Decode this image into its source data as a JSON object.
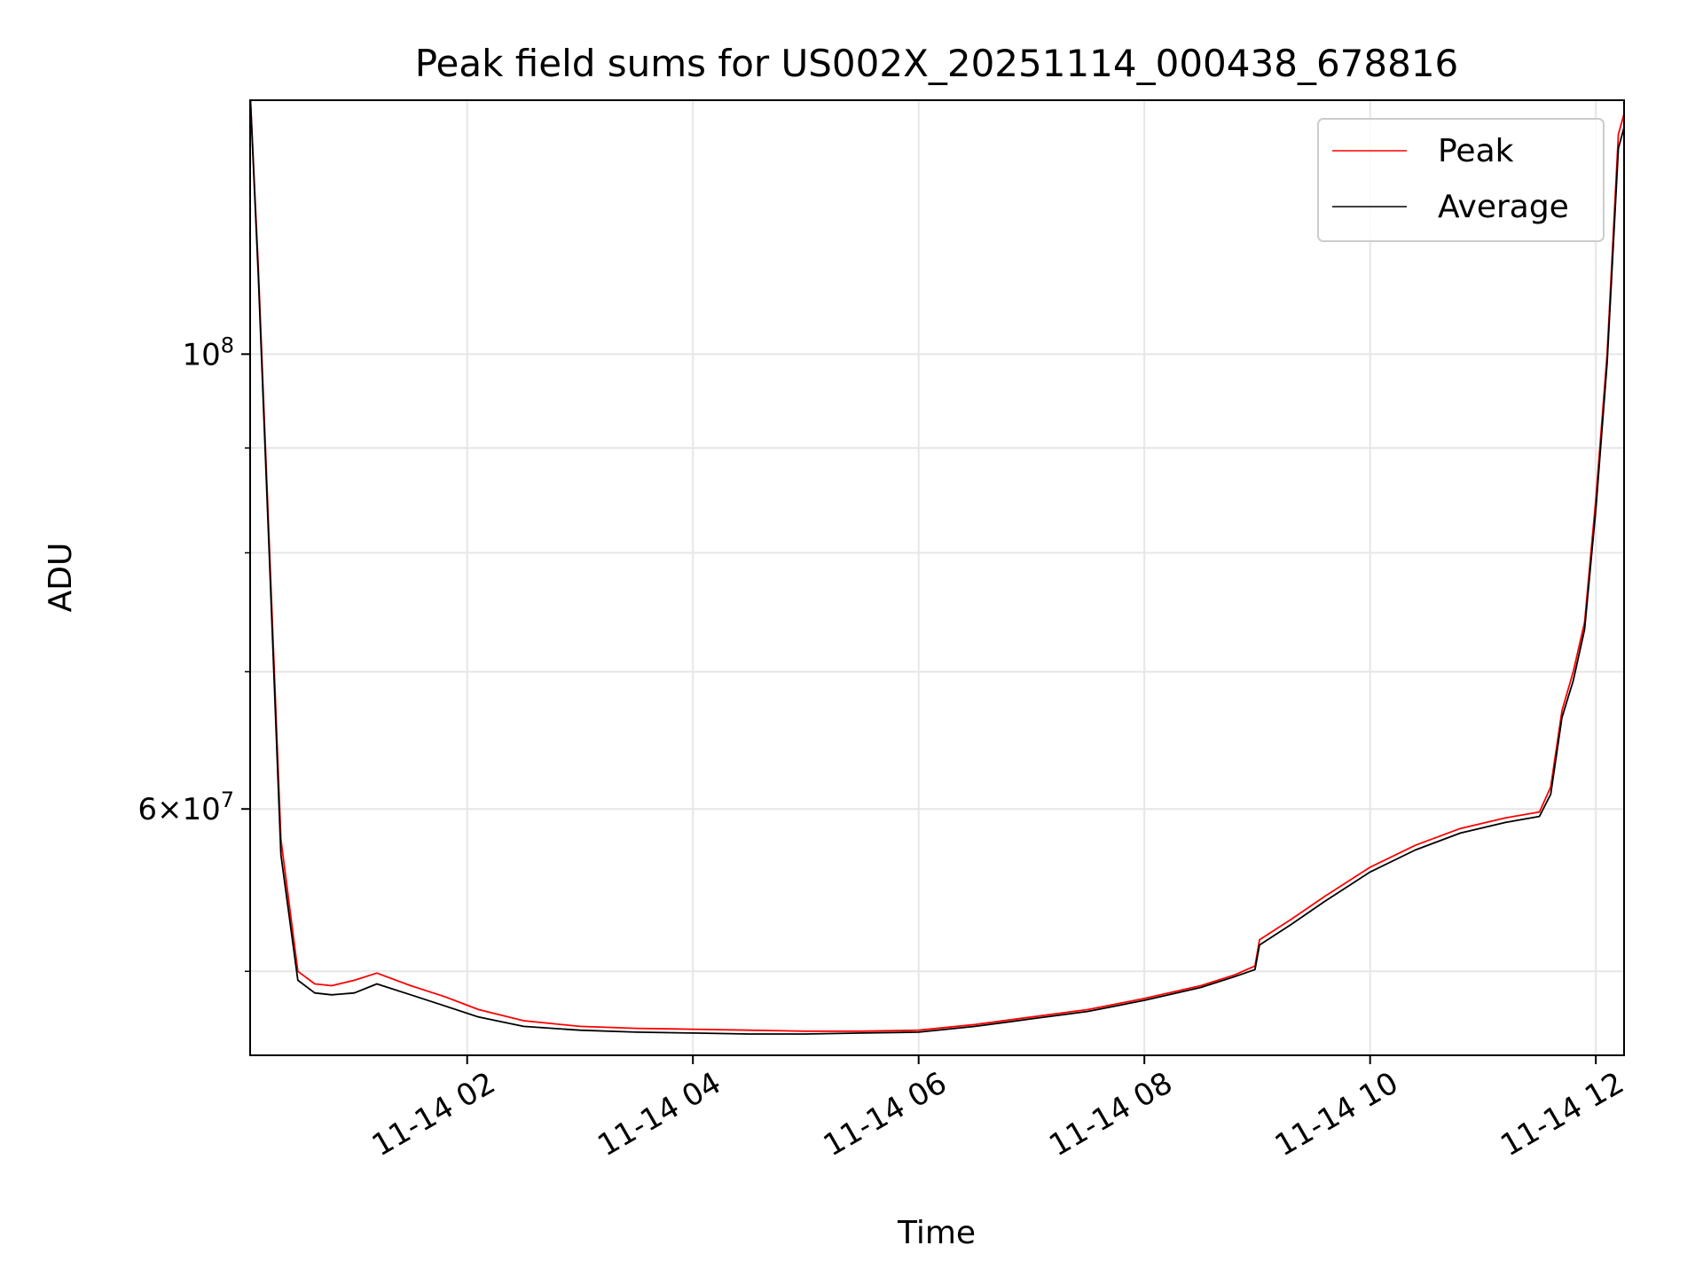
{
  "chart_data": {
    "type": "line",
    "title": "Peak field sums for US002X_20251114_000438_678816",
    "xlabel": "Time",
    "ylabel": "ADU",
    "yscale": "log",
    "grid": true,
    "legend_position": "top-right",
    "x_tick_labels": [
      "11-14 02",
      "11-14 04",
      "11-14 06",
      "11-14 08",
      "11-14 10",
      "11-14 12"
    ],
    "x_tick_hours": [
      2,
      4,
      6,
      8,
      10,
      12
    ],
    "xlim_hours": [
      0.077,
      12.25
    ],
    "ylim": [
      45500000,
      133000000
    ],
    "y_major_ticks": [
      {
        "value": 100000000,
        "mantissa": "",
        "exponent": "8"
      },
      {
        "value": 60000000,
        "mantissa": "6",
        "exponent": "7"
      }
    ],
    "y_minor_ticks": [
      50000000,
      70000000,
      80000000,
      90000000
    ],
    "series": [
      {
        "name": "Peak",
        "color": "#ff0000",
        "x_hours": [
          0.08,
          0.15,
          0.25,
          0.35,
          0.5,
          0.65,
          0.8,
          1.0,
          1.2,
          1.5,
          1.8,
          2.1,
          2.5,
          3.0,
          3.5,
          4.0,
          4.5,
          5.0,
          5.5,
          6.0,
          6.5,
          7.0,
          7.5,
          8.0,
          8.5,
          8.8,
          8.98,
          9.02,
          9.3,
          9.6,
          10.0,
          10.4,
          10.8,
          11.2,
          11.5,
          11.6,
          11.7,
          11.8,
          11.9,
          12.0,
          12.1,
          12.2,
          12.25
        ],
        "values": [
          133000000,
          110000000,
          80000000,
          58000000,
          50000000,
          49300000,
          49200000,
          49500000,
          49900000,
          49200000,
          48600000,
          47900000,
          47300000,
          47000000,
          46900000,
          46850000,
          46800000,
          46750000,
          46750000,
          46800000,
          47100000,
          47500000,
          47900000,
          48500000,
          49200000,
          49800000,
          50300000,
          51800000,
          53000000,
          54400000,
          56200000,
          57600000,
          58700000,
          59400000,
          59800000,
          61500000,
          67000000,
          70000000,
          74000000,
          85000000,
          100000000,
          128000000,
          131000000
        ]
      },
      {
        "name": "Average",
        "color": "#000000",
        "x_hours": [
          0.08,
          0.15,
          0.25,
          0.35,
          0.5,
          0.65,
          0.8,
          1.0,
          1.2,
          1.5,
          1.8,
          2.1,
          2.5,
          3.0,
          3.5,
          4.0,
          4.5,
          5.0,
          5.5,
          6.0,
          6.5,
          7.0,
          7.5,
          8.0,
          8.5,
          8.8,
          8.98,
          9.02,
          9.3,
          9.6,
          10.0,
          10.4,
          10.8,
          11.2,
          11.5,
          11.6,
          11.7,
          11.8,
          11.9,
          12.0,
          12.1,
          12.2,
          12.25
        ],
        "values": [
          133000000,
          109000000,
          79000000,
          57000000,
          49500000,
          48800000,
          48700000,
          48800000,
          49300000,
          48700000,
          48100000,
          47500000,
          47000000,
          46800000,
          46700000,
          46650000,
          46600000,
          46600000,
          46650000,
          46700000,
          47000000,
          47400000,
          47800000,
          48400000,
          49100000,
          49700000,
          50100000,
          51500000,
          52700000,
          54100000,
          55900000,
          57300000,
          58400000,
          59100000,
          59500000,
          61000000,
          66500000,
          69300000,
          73400000,
          84000000,
          99000000,
          126000000,
          129000000
        ]
      }
    ]
  }
}
